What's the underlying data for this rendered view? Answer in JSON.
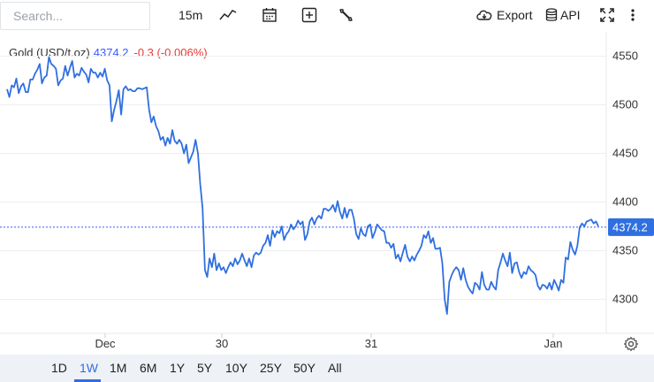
{
  "toolbar": {
    "search_placeholder": "Search...",
    "interval": "15m",
    "export_label": "Export",
    "api_label": "API",
    "icons": [
      "line-chart-icon",
      "calendar-icon",
      "add-compare-icon",
      "wrench-icon",
      "cloud-download-icon",
      "database-icon",
      "fullscreen-icon",
      "more-icon"
    ]
  },
  "legend": {
    "name": "Gold (USD/t.oz)",
    "value": "4374.2",
    "change": "-0.3 (-0.006%)",
    "value_color": "#3d5afe",
    "change_color": "#e53935"
  },
  "ranges": [
    "1D",
    "1W",
    "1M",
    "6M",
    "1Y",
    "5Y",
    "10Y",
    "25Y",
    "50Y",
    "All"
  ],
  "active_range": "1W",
  "chart_data": {
    "type": "line",
    "title": "Gold (USD/t.oz)",
    "line_color": "#2f6fe0",
    "grid": true,
    "y_ticks": [
      "4550",
      "4500",
      "4450",
      "4400",
      "4350",
      "4300"
    ],
    "ylim": [
      4265,
      4575
    ],
    "x_ticks": [
      "Dec",
      "30",
      "31",
      "Jan"
    ],
    "last_value_label": "4374.2",
    "last_value": 4374.2,
    "series": [
      {
        "values": [
          4516,
          4508,
          4520,
          4518,
          4527,
          4512,
          4519,
          4522,
          4513,
          4513,
          4526,
          4526,
          4532,
          4536,
          4542,
          4522,
          4528,
          4530,
          4549,
          4542,
          4540,
          4537,
          4520,
          4525,
          4527,
          4540,
          4530,
          4538,
          4545,
          4528,
          4532,
          4530,
          4538,
          4534,
          4531,
          4523,
          4537,
          4533,
          4533,
          4528,
          4533,
          4529,
          4537,
          4525,
          4520,
          4483,
          4495,
          4504,
          4515,
          4490,
          4516,
          4519,
          4515,
          4516,
          4514,
          4514,
          4517,
          4517,
          4516,
          4517,
          4518,
          4495,
          4482,
          4488,
          4478,
          4473,
          4464,
          4467,
          4458,
          4466,
          4460,
          4474,
          4463,
          4460,
          4464,
          4460,
          4450,
          4459,
          4440,
          4446,
          4452,
          4464,
          4450,
          4418,
          4394,
          4330,
          4323,
          4342,
          4333,
          4347,
          4330,
          4337,
          4330,
          4333,
          4327,
          4333,
          4338,
          4334,
          4342,
          4336,
          4340,
          4347,
          4340,
          4334,
          4342,
          4333,
          4345,
          4348,
          4346,
          4348,
          4355,
          4358,
          4366,
          4355,
          4371,
          4364,
          4370,
          4368,
          4375,
          4361,
          4367,
          4370,
          4377,
          4372,
          4375,
          4381,
          4377,
          4380,
          4361,
          4367,
          4380,
          4384,
          4377,
          4383,
          4386,
          4383,
          4393,
          4393,
          4391,
          4393,
          4397,
          4390,
          4401,
          4390,
          4383,
          4394,
          4384,
          4392,
          4392,
          4383,
          4367,
          4362,
          4373,
          4367,
          4365,
          4375,
          4377,
          4363,
          4369,
          4377,
          4374,
          4371,
          4370,
          4358,
          4358,
          4353,
          4357,
          4342,
          4346,
          4339,
          4348,
          4356,
          4344,
          4339,
          4344,
          4340,
          4346,
          4350,
          4355,
          4366,
          4363,
          4370,
          4358,
          4363,
          4352,
          4352,
          4353,
          4337,
          4300,
          4285,
          4318,
          4325,
          4330,
          4333,
          4330,
          4320,
          4332,
          4320,
          4313,
          4309,
          4306,
          4317,
          4315,
          4310,
          4328,
          4315,
          4310,
          4310,
          4318,
          4313,
          4310,
          4330,
          4338,
          4347,
          4340,
          4334,
          4348,
          4327,
          4337,
          4338,
          4328,
          4322,
          4328,
          4326,
          4334,
          4330,
          4328,
          4325,
          4314,
          4310,
          4315,
          4314,
          4311,
          4317,
          4310,
          4320,
          4315,
          4309,
          4320,
          4317,
          4343,
          4341,
          4359,
          4351,
          4346,
          4355,
          4374,
          4378,
          4375,
          4380,
          4381,
          4382,
          4378,
          4380,
          4375
        ]
      }
    ]
  }
}
